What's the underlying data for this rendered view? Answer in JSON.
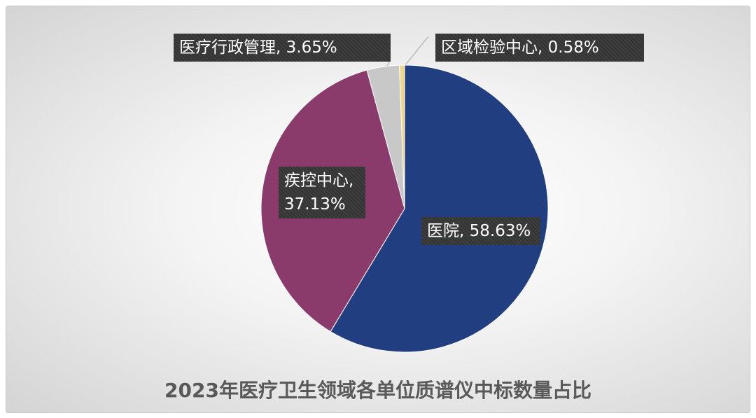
{
  "chart_data": {
    "type": "pie",
    "title": "2023年医疗卫生领域各单位质谱仪中标数量占比",
    "values": [
      58.63,
      37.13,
      3.65,
      0.58
    ],
    "value_labels": [
      "医院, 58.63%",
      "疾控中心, 37.13%",
      "医疗行政管理, 3.65%",
      "区域检验中心, 0.58%"
    ],
    "colors": [
      "#213e80",
      "#8a3b6b",
      "#c8c8c8",
      "#f0d68a"
    ]
  }
}
